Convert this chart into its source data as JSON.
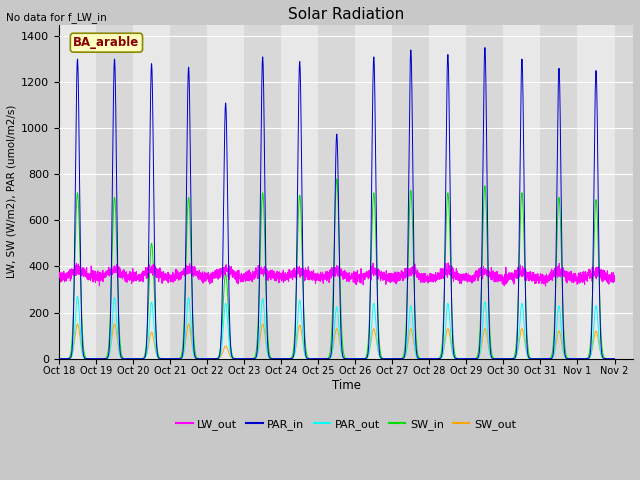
{
  "title": "Solar Radiation",
  "top_left_text": "No data for f_LW_in",
  "legend_label_text": "BA_arable",
  "ylabel": "LW, SW (W/m2), PAR (umol/m2/s)",
  "xlabel": "Time",
  "ylim": [
    0,
    1450
  ],
  "yticks": [
    0,
    200,
    400,
    600,
    800,
    1000,
    1200,
    1400
  ],
  "xtick_labels": [
    "Oct 18",
    "Oct 19",
    "Oct 20",
    "Oct 21",
    "Oct 22",
    "Oct 23",
    "Oct 24",
    "Oct 25",
    "Oct 26",
    "Oct 27",
    "Oct 28",
    "Oct 29",
    "Oct 30",
    "Oct 31",
    "Nov 1",
    "Nov 2"
  ],
  "colors": {
    "LW_out": "#ff00ff",
    "PAR_in": "#0000cc",
    "PAR_out": "#00ffff",
    "SW_in": "#00dd00",
    "SW_out": "#ffa500"
  },
  "num_days": 15,
  "day_peaks": [
    1300,
    1300,
    1280,
    1265,
    1110,
    1310,
    1290,
    975,
    1310,
    1340,
    1320,
    1350,
    1300,
    1260,
    1250
  ],
  "sw_in_peaks": [
    720,
    700,
    500,
    700,
    370,
    720,
    710,
    780,
    720,
    730,
    720,
    750,
    720,
    700,
    690
  ],
  "sw_out_peaks": [
    150,
    150,
    115,
    150,
    55,
    150,
    145,
    130,
    130,
    130,
    130,
    130,
    130,
    120,
    120
  ],
  "par_out_peaks": [
    270,
    265,
    245,
    265,
    240,
    260,
    255,
    225,
    240,
    230,
    240,
    245,
    240,
    230,
    230
  ],
  "lw_out_base": 355,
  "figwidth": 6.4,
  "figheight": 4.8,
  "dpi": 100
}
